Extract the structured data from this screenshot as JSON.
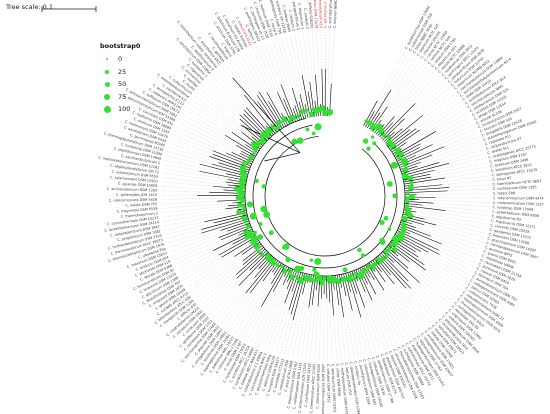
{
  "scale": {
    "label": "Tree scale: 0.1"
  },
  "legend": {
    "title": "bootstrap0",
    "items": [
      {
        "label": "0",
        "value": 0
      },
      {
        "label": "25",
        "value": 25
      },
      {
        "label": "50",
        "value": 50
      },
      {
        "label": "75",
        "value": 75
      },
      {
        "label": "100",
        "value": 100
      }
    ]
  },
  "colors": {
    "bootstrap_marker": "#33e033",
    "highlight_label": "#e02020",
    "branch": "#000000",
    "guide_line": "#cccccc",
    "label": "#333333"
  },
  "tree": {
    "layout": "circular",
    "leaves": [
      "C. quadrijunctus DSM 17094",
      "C. subterminale DSM 758",
      "C. fallax NBRC 3040",
      "C. septicum NCTC 547",
      "C. chauvoei JF4335",
      "C. carnis NCTC 13300",
      "C. tertium NCTC 546",
      "C. celatum DSM 1785",
      "C. disporicum DS1",
      "C. baratii NCTC 10986",
      "C. sardiniense DSM 2632",
      "C. perfringens ATCC 13124",
      "C. paraputrificum DSM 2630",
      "C. butyricum DSM 10702",
      "C. beijerinckii NCIMB 8052",
      "C. saccharobutylicum DSM 13864",
      "C. saccharoperbutylacetonicum N1-4",
      "C. diolis DSM 15410",
      "C. acetobutylicum ATCC 824",
      "C. saccharolyticum WM1",
      "C. pasteurianum DSM 525",
      "C. acidisoli DSM 12555",
      "C. akagii DSM 12554",
      "C. arbusti SL206",
      "C. tyrobutyricum DSM 2637",
      "C. kluyveri DSM 555",
      "C. ljungdahlii DSM 13528",
      "C. autoethanogenum DSM 10061",
      "C. ragsdalei P11",
      "C. carboxidivorans P7",
      "C. drakei SL1",
      "C. scatologenes ATCC 25775",
      "C. magnum DSM 2767",
      "C. aceticum DSM 1496",
      "C. botulinum ATCC 3502",
      "C. sporogenes ATCC 15579",
      "C. novyi NT",
      "C. haemolyticum NCTC 9693",
      "C. cochlearium DSM 1285",
      "C. tetani E88",
      "C. tetanomorphum DSM 4474",
      "C. malenominatum DSM 1127",
      "C. lundense DSM 17049",
      "C. estertheticum DSM 8809",
      "C. algidicarnis B3",
      "C. frigidicarnis DSM 12271",
      "C. vincentii DSM 10228",
      "C. gasigenes DSM 12272",
      "C. bowmanii DSM 14206",
      "C. psychrophilum DSM 14207",
      "C. homopropionicum DSM 5847",
      "C. punense BPY5",
      "C. grantii DSM 8605",
      "C. intestinale URNW",
      "C. cavendishii DSM 21758",
      "C. puniceum DSM 2619",
      "C. roseum DSM 6424",
      "C. felsineum DSM 794",
      "C. aurantibutyricum DSM 793",
      "C. collagenovorans DSM 3089",
      "C. pascui DSM 10365",
      "C. cellulovorans 743B",
      "C. cellulofermentans DSM 23",
      "C. thermobutyricum DSM 4928",
      "C. thermopalmarium DSM 5974",
      "C. sartagoforme AAU1",
      "C. neonatale 250.09",
      "C. uliginosum DSM 12992",
      "C. vulturis DSM 100263",
      "C. polyendosporum DSM 2616",
      "C. chromiireducens GD3",
      "C. luticellarii DSM 29923",
      "C. oryzae DSM 28571",
      "C. isatidis DSM 15098",
      "C. aciditolerans DSM 17425",
      "C. nitrophenolicum DSM 22437",
      "C. tagluense DSM 17763",
      "C. hydrogeniformans DSM 21451",
      "C. argentinense DSM 2811",
      "C. subterminale ATCC 25774",
      "C. sulfidigenes DSM 18982",
      "C. thiosulfatireducens DSM 13105",
      "C. amazonitimonense LBA 2048",
      "C. liquoris DSM 100320",
      "C. guangxiense DSM 100763",
      "C. fimetarium DSM 9179",
      "C. swellfunianum DSM 27788",
      "C. colicanis DSM 13634",
      "C. hveragerdense DSM 14195",
      "C. cylindrosporum DSM 605",
      "C. purinilyticum DSM 1384",
      "C. acidurici 9a",
      "C. sporosphaeroides DSM 1294",
      "C. leptum DSM 753",
      "C. methylpentosum DSM 5476",
      "C. viride DSM 6836",
      "C. sporopusillum DSM 15201",
      "C. cellulosi DSM 12452",
      "C. thermosuccinogenes DSM 5807",
      "C. stercorarium DSM 8532",
      "C. thermocellum ATCC 27405",
      "C. clariflavum DSM 19732",
      "C. straminisolvens JCM 21531",
      "C. cellobioparum DSM 1351",
      "C. papyrosolvens DSM 2782",
      "C. josui JCM 17888",
      "C. cellulolyticum H10",
      "C. termitidis CT1112",
      "C. hungatei DSM 14427",
      "C. aldrichii DSM 6159",
      "C. phytofermentans ISDg",
      "C. saccharolyticum WM1 2",
      "C. clostridioforme 2 1 49FAA",
      "C. bolteae ATCC BAA-613",
      "C. symbiosum ATCC 14940",
      "C. scindens ATCC 35704",
      "C. hylemonae DSM 15053",
      "C. nexile DSM 1787",
      "C. citroniae WAL-17108",
      "C. aldenense WAL-18727",
      "C. asparagiforme DSM 15981",
      "C. lavalense DSM 19852",
      "C. amygdalinum DSM 12857",
      "C. populeti DSM 5832",
      "C. saccharogumia DSM 17460",
      "C. cocleatum DSM 1551",
      "C. spiroforme DSM 1552",
      "C. innocuum 2959",
      "C. ramosum DSM 1402",
      "C. clostridioforme CM201",
      "C. difficile 630",
      "C. mangenotii DSM 1289",
      "C. bifermentans ATCC 638",
      "C. sordellii ATCC 9714",
      "C. ghonii DSM 15049",
      "C. irregulare DSM 2635",
      "C. lituseburense DSM 797",
      "C. glycolicum DSM 1288",
      "C. hiranonis DSM 13275",
      "C. formicaceticum DSM 92",
      "C. litorale DSM 5388",
      "C. sticklandii DSM 519",
      "C. acidurici DSM 604",
      "C. maximum DSM 15813",
      "C. ultunense Esp",
      "C. thermautotrophicum DSM 1974",
      "C. thermoaceticum ATCC 39073",
      "C. hydroxybenzoicum DSM 7310",
      "C. propionicum DSM 1682",
      "C. neopropionicum DSM 3847",
      "C. lactatifermentans DSM 14214",
      "C. caminithermale DSM 15212",
      "C. thermobutyricum 2",
      "C. mayombei DSM 6539",
      "C. indolis DSM 755",
      "C. celerecrescens DSM 5628",
      "C. sphenoides JCM 1415",
      "C. aminovalericum DSM 1283",
      "C. jejuense DSM 15929",
      "C. xylanovorans DSM 12503",
      "C. xylanolyticum DSM 6555",
      "C. algidixylanolyticum SPL73",
      "C. methoxybenzovorans DSM 12182",
      "C. saccharobutylicum 2",
      "C. peptidivorans DSM 14940",
      "C. tunisiense DSM 15206",
      "C. thermopapyrolyticum DSM 13736",
      "C. bornimense M2/40",
      "C. aerotolerans DSM 5434",
      "C. herbivorans DSM 10479",
      "C. oroticum DSM 1287",
      "C. fusiformis DSM 18080",
      "C. coccoides DSM 935",
      "C. glycyrrhizinilyticum JCM 13368",
      "C. polysaccharolyticum DSM 1801",
      "C. sufflavum DSM 19573",
      "C. cadaveris AGR2141",
      "C. senegalense JC122",
      "C. saudiense JCC",
      "C. massiliamazoniense",
      "C. culturomicum",
      "C. ihumii",
      "C. merdae",
      "C. minihomine",
      "C. nigeriense",
      "C. tunisiense 2",
      "C. amylolyticum DSM 21864",
      "C. swellfunianum 2",
      "C. estertheticum subsp. laramiense",
      "C. esterthetica ATCC",
      "C. gelidum",
      "C. lacusfryxellense",
      "C. frigoris",
      "C. arcticum DSM 3795",
      "C. botulinum B Eklund 17B",
      "C. botulinum E3 Alaska",
      "C. baratii Sullivan",
      "C. butyricum 5521",
      "C. tertium 2",
      "C. perfringens SM101",
      "C. perfringens str 13",
      "C. chauvoei DSM 7528",
      "C. septicum DSM 7534",
      "C. novyi A",
      "C. sporogenes DSM 795",
      "C. scindens VPI 12708",
      "C. bolteae 90A9",
      "C. celatum 2",
      "C. paraputrificum 2",
      "C. disporicum 2",
      "C. sordellii 2",
      "C. difficile R20291",
      "C. hathewayi DSM 13479",
      "C. saccharolyticum K10",
      "C. spiroforme 2",
      "C. acetobutylicum DSM 1731",
      "C. kluyveri NBRC 12016"
    ],
    "highlighted_leaves": [
      "C. hathewayi DSM 13479",
      "C. saccharolyticum K10",
      "C. spiroforme 2",
      "C. butyricum 5521"
    ]
  }
}
